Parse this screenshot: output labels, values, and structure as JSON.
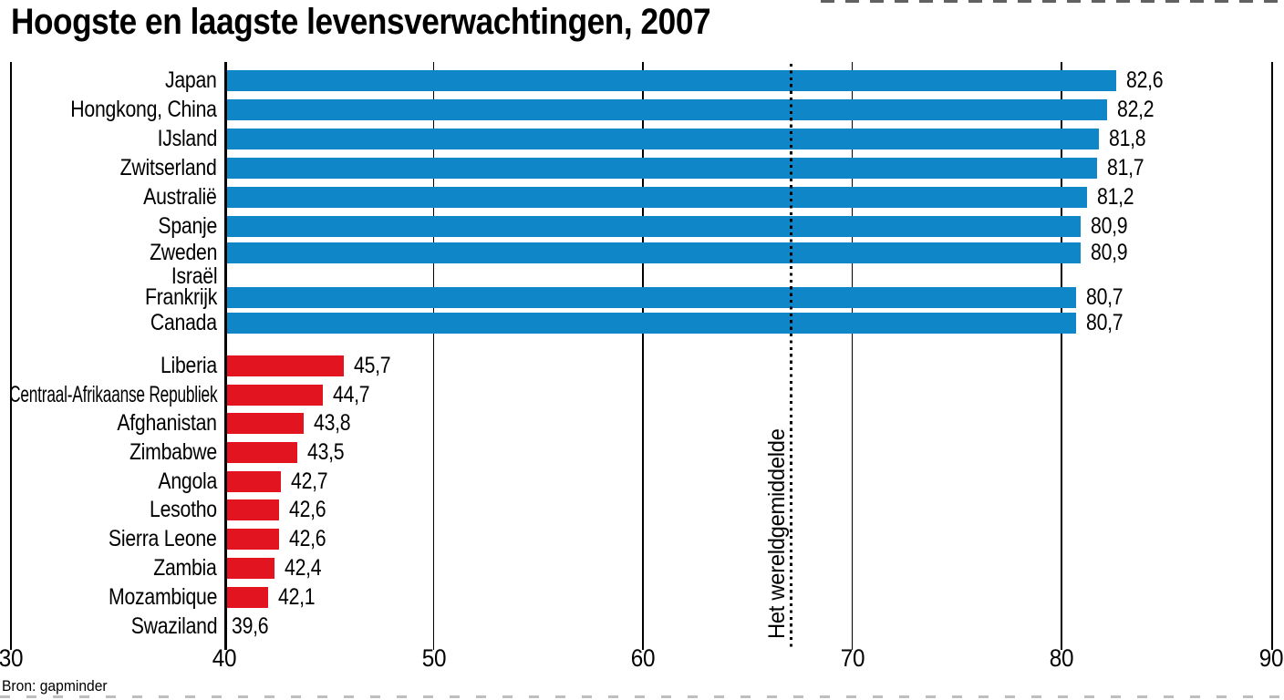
{
  "page": {
    "title": "Hoogste en laagste levensverwachtingen, 2007",
    "source": "Bron: gapminder"
  },
  "colors": {
    "high_bar": "#0f86c8",
    "low_bar": "#e11420",
    "axis": "#000000",
    "background": "#ffffff"
  },
  "chart_data": {
    "type": "bar",
    "orientation": "horizontal",
    "title": "Hoogste en laagste levensverwachtingen, 2007",
    "source": "Bron: gapminder",
    "x_axis": {
      "min": 30,
      "max": 90,
      "tick_step": 10,
      "tick_labels": [
        "30",
        "40",
        "50",
        "60",
        "70",
        "80",
        "90"
      ],
      "bars_baseline_value": 40,
      "grid": true
    },
    "world_average_line": {
      "label": "Het wereldgemiddelde",
      "value": 67.1,
      "style": "vertical-dotted"
    },
    "series": [
      {
        "name": "hoogste",
        "color": "#0f86c8",
        "points": [
          {
            "label": "Japan",
            "value": 82.6,
            "display": "82,6"
          },
          {
            "label": "Hongkong, China",
            "value": 82.2,
            "display": "82,2"
          },
          {
            "label": "IJsland",
            "value": 81.8,
            "display": "81,8"
          },
          {
            "label": "Zwitserland",
            "value": 81.7,
            "display": "81,7"
          },
          {
            "label": "Australië",
            "value": 81.2,
            "display": "81,2"
          },
          {
            "label": "Spanje",
            "value": 80.9,
            "display": "80,9"
          },
          {
            "label": "Zweden",
            "value": 80.9,
            "display": "80,9"
          },
          {
            "label": "Israël",
            "value": null,
            "display": ""
          },
          {
            "label": "Frankrijk",
            "value": 80.7,
            "display": "80,7"
          },
          {
            "label": "Canada",
            "value": 80.7,
            "display": "80,7"
          }
        ]
      },
      {
        "name": "laagste",
        "color": "#e11420",
        "points": [
          {
            "label": "Liberia",
            "value": 45.7,
            "display": "45,7"
          },
          {
            "label": "Centraal-Afrikaanse Republiek",
            "value": 44.7,
            "display": "44,7"
          },
          {
            "label": "Afghanistan",
            "value": 43.8,
            "display": "43,8"
          },
          {
            "label": "Zimbabwe",
            "value": 43.5,
            "display": "43,5"
          },
          {
            "label": "Angola",
            "value": 42.7,
            "display": "42,7"
          },
          {
            "label": "Lesotho",
            "value": 42.6,
            "display": "42,6"
          },
          {
            "label": "Sierra Leone",
            "value": 42.6,
            "display": "42,6"
          },
          {
            "label": "Zambia",
            "value": 42.4,
            "display": "42,4"
          },
          {
            "label": "Mozambique",
            "value": 42.1,
            "display": "42,1"
          },
          {
            "label": "Swaziland",
            "value": 39.6,
            "display": "39,6"
          }
        ]
      }
    ]
  }
}
